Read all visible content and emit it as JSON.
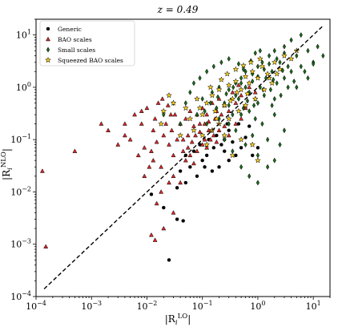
{
  "chart_data": {
    "type": "scatter",
    "title": "z = 0.49",
    "xlabel": "|R_i^LO|",
    "ylabel": "|R_i^NLO|",
    "xscale": "log",
    "yscale": "log",
    "xlim": [
      0.0001,
      20
    ],
    "ylim": [
      0.0001,
      20
    ],
    "x_ticks": [
      "10^-4",
      "10^-3",
      "10^-2",
      "10^-1",
      "10^0",
      "10^1"
    ],
    "y_ticks": [
      "10^-4",
      "10^-3",
      "10^-2",
      "10^-1",
      "10^0",
      "10^1"
    ],
    "grid": false,
    "legend_position": "top-left",
    "reference_line": {
      "style": "dashed",
      "color": "#000000",
      "from": [
        0.00014,
        0.00014
      ],
      "to": [
        15,
        15
      ]
    },
    "series": [
      {
        "name": "Generic",
        "marker": "circle",
        "color": "#000000",
        "points": [
          [
            0.025,
            0.0005
          ],
          [
            0.035,
            0.003
          ],
          [
            0.045,
            0.0028
          ],
          [
            0.02,
            0.005
          ],
          [
            0.035,
            0.012
          ],
          [
            0.05,
            0.015
          ],
          [
            0.06,
            0.03
          ],
          [
            0.08,
            0.02
          ],
          [
            0.1,
            0.04
          ],
          [
            0.12,
            0.05
          ],
          [
            0.15,
            0.025
          ],
          [
            0.2,
            0.03
          ],
          [
            0.25,
            0.06
          ],
          [
            0.3,
            0.04
          ],
          [
            0.4,
            0.05
          ],
          [
            0.5,
            0.07
          ],
          [
            0.07,
            0.06
          ],
          [
            0.09,
            0.08
          ],
          [
            0.13,
            0.1
          ],
          [
            0.18,
            0.12
          ],
          [
            0.25,
            0.1
          ],
          [
            0.35,
            0.09
          ],
          [
            0.6,
            0.11
          ],
          [
            0.8,
            0.05
          ],
          [
            1.0,
            0.07
          ],
          [
            0.05,
            0.05
          ],
          [
            0.3,
            0.15
          ],
          [
            0.45,
            0.2
          ],
          [
            0.7,
            0.18
          ],
          [
            0.012,
            0.009
          ],
          [
            0.22,
            0.08
          ],
          [
            0.16,
            0.07
          ],
          [
            0.11,
            0.03
          ],
          [
            0.04,
            0.025
          ],
          [
            0.28,
            0.2
          ]
        ]
      },
      {
        "name": "BAO scales",
        "marker": "triangle",
        "color": "#d62728",
        "points": [
          [
            0.00013,
            0.025
          ],
          [
            0.00015,
            0.0009
          ],
          [
            0.0005,
            0.06
          ],
          [
            0.0015,
            0.2
          ],
          [
            0.002,
            0.15
          ],
          [
            0.003,
            0.08
          ],
          [
            0.004,
            0.12
          ],
          [
            0.005,
            0.1
          ],
          [
            0.006,
            0.3
          ],
          [
            0.007,
            0.05
          ],
          [
            0.008,
            0.2
          ],
          [
            0.009,
            0.07
          ],
          [
            0.01,
            0.4
          ],
          [
            0.012,
            0.06
          ],
          [
            0.013,
            0.15
          ],
          [
            0.014,
            0.25
          ],
          [
            0.015,
            0.09
          ],
          [
            0.016,
            0.5
          ],
          [
            0.018,
            0.03
          ],
          [
            0.02,
            0.12
          ],
          [
            0.022,
            0.2
          ],
          [
            0.025,
            0.08
          ],
          [
            0.028,
            0.15
          ],
          [
            0.03,
            0.004
          ],
          [
            0.032,
            0.3
          ],
          [
            0.035,
            0.1
          ],
          [
            0.04,
            0.2
          ],
          [
            0.045,
            0.06
          ],
          [
            0.05,
            0.25
          ],
          [
            0.055,
            0.12
          ],
          [
            0.06,
            0.35
          ],
          [
            0.065,
            0.09
          ],
          [
            0.07,
            0.18
          ],
          [
            0.08,
            0.3
          ],
          [
            0.09,
            0.14
          ],
          [
            0.1,
            0.4
          ],
          [
            0.11,
            0.2
          ],
          [
            0.12,
            0.3
          ],
          [
            0.13,
            0.15
          ],
          [
            0.15,
            0.5
          ],
          [
            0.17,
            0.25
          ],
          [
            0.2,
            0.6
          ],
          [
            0.22,
            0.3
          ],
          [
            0.25,
            0.45
          ],
          [
            0.3,
            0.35
          ],
          [
            0.35,
            0.8
          ],
          [
            0.4,
            0.5
          ],
          [
            0.5,
            0.7
          ],
          [
            0.6,
            0.4
          ],
          [
            0.012,
            0.0015
          ],
          [
            0.014,
            0.0012
          ],
          [
            0.02,
            0.002
          ],
          [
            0.015,
            0.006
          ],
          [
            0.018,
            0.01
          ],
          [
            0.025,
            0.015
          ],
          [
            0.03,
            0.02
          ],
          [
            0.04,
            0.015
          ],
          [
            0.05,
            0.04
          ],
          [
            0.06,
            0.05
          ],
          [
            0.07,
            0.035
          ],
          [
            0.08,
            0.06
          ],
          [
            0.1,
            0.08
          ],
          [
            0.12,
            0.07
          ],
          [
            0.14,
            0.1
          ],
          [
            0.16,
            0.12
          ],
          [
            0.18,
            0.09
          ],
          [
            0.2,
            0.15
          ],
          [
            0.25,
            0.18
          ],
          [
            0.3,
            0.12
          ],
          [
            0.4,
            0.2
          ],
          [
            0.5,
            0.25
          ],
          [
            0.009,
            0.02
          ],
          [
            0.011,
            0.03
          ],
          [
            0.013,
            0.04
          ],
          [
            0.03,
            0.05
          ],
          [
            0.045,
            0.1
          ],
          [
            0.055,
            0.07
          ],
          [
            0.075,
            0.12
          ],
          [
            0.09,
            0.2
          ],
          [
            0.11,
            0.1
          ],
          [
            0.13,
            0.22
          ],
          [
            0.18,
            0.35
          ],
          [
            0.004,
            0.2
          ],
          [
            0.008,
            0.35
          ],
          [
            0.019,
            0.6
          ],
          [
            0.024,
            0.45
          ],
          [
            0.027,
            0.3
          ],
          [
            0.7,
            1.0
          ],
          [
            0.9,
            0.8
          ],
          [
            0.45,
            1.1
          ]
        ]
      },
      {
        "name": "Small scales",
        "marker": "diamond",
        "color": "#1a6b1a",
        "points": [
          [
            0.05,
            0.5
          ],
          [
            0.08,
            0.3
          ],
          [
            0.1,
            0.6
          ],
          [
            0.12,
            0.2
          ],
          [
            0.15,
            0.8
          ],
          [
            0.18,
            0.4
          ],
          [
            0.2,
            1.0
          ],
          [
            0.25,
            0.5
          ],
          [
            0.3,
            0.9
          ],
          [
            0.35,
            0.3
          ],
          [
            0.4,
            1.2
          ],
          [
            0.45,
            0.6
          ],
          [
            0.5,
            1.5
          ],
          [
            0.55,
            0.4
          ],
          [
            0.6,
            2.0
          ],
          [
            0.7,
            0.8
          ],
          [
            0.8,
            1.8
          ],
          [
            0.9,
            0.6
          ],
          [
            1.0,
            2.5
          ],
          [
            1.1,
            1.0
          ],
          [
            1.2,
            3.0
          ],
          [
            1.4,
            1.5
          ],
          [
            1.6,
            4.0
          ],
          [
            1.8,
            2.0
          ],
          [
            2.0,
            5.0
          ],
          [
            2.5,
            3.0
          ],
          [
            3.0,
            6.0
          ],
          [
            3.5,
            2.5
          ],
          [
            4.0,
            8.0
          ],
          [
            5.0,
            4.0
          ],
          [
            6.0,
            10.0
          ],
          [
            8.0,
            5.0
          ],
          [
            10.0,
            3.0
          ],
          [
            12.0,
            6.0
          ],
          [
            15.0,
            4.0
          ],
          [
            0.3,
            0.2
          ],
          [
            0.5,
            0.3
          ],
          [
            0.7,
            0.35
          ],
          [
            1.0,
            0.5
          ],
          [
            1.3,
            0.7
          ],
          [
            1.7,
            0.9
          ],
          [
            2.2,
            1.2
          ],
          [
            3.0,
            1.5
          ],
          [
            4.0,
            2.0
          ],
          [
            6.0,
            2.5
          ],
          [
            2.0,
            0.3
          ],
          [
            3.0,
            0.15
          ],
          [
            2.5,
            0.08
          ],
          [
            1.5,
            0.1
          ],
          [
            1.0,
            0.05
          ],
          [
            0.6,
            0.08
          ],
          [
            0.8,
            0.12
          ],
          [
            1.2,
            0.2
          ],
          [
            2.0,
            0.6
          ],
          [
            5.0,
            1.0
          ],
          [
            8.0,
            1.5
          ],
          [
            0.4,
            0.15
          ],
          [
            0.25,
            0.1
          ],
          [
            0.15,
            0.15
          ],
          [
            0.2,
            0.25
          ],
          [
            0.3,
            0.45
          ],
          [
            0.4,
            0.7
          ],
          [
            0.6,
            1.0
          ],
          [
            0.8,
            1.3
          ],
          [
            1.0,
            1.6
          ],
          [
            1.3,
            2.2
          ],
          [
            1.6,
            2.8
          ],
          [
            2.2,
            3.5
          ],
          [
            3.0,
            4.5
          ],
          [
            0.02,
            0.3
          ],
          [
            0.03,
            0.5
          ],
          [
            0.04,
            0.2
          ],
          [
            0.06,
            0.8
          ],
          [
            0.07,
            1.2
          ],
          [
            0.09,
            1.5
          ],
          [
            0.12,
            2.0
          ],
          [
            0.16,
            2.5
          ],
          [
            0.22,
            3.0
          ],
          [
            0.3,
            3.5
          ],
          [
            0.45,
            2.8
          ],
          [
            0.55,
            2.2
          ],
          [
            0.75,
            3.2
          ],
          [
            0.9,
            4.5
          ],
          [
            1.1,
            5.0
          ],
          [
            0.7,
            0.02
          ],
          [
            1.0,
            0.015
          ],
          [
            1.5,
            0.03
          ],
          [
            2.0,
            0.04
          ],
          [
            0.5,
            0.03
          ],
          [
            0.35,
            0.06
          ],
          [
            0.9,
            0.25
          ],
          [
            1.8,
            0.45
          ],
          [
            2.6,
            0.7
          ],
          [
            3.5,
            1.0
          ],
          [
            4.5,
            1.3
          ],
          [
            7.0,
            2.0
          ],
          [
            10.0,
            2.8
          ],
          [
            0.65,
            0.55
          ],
          [
            0.85,
            0.45
          ],
          [
            1.25,
            0.9
          ],
          [
            1.9,
            1.4
          ],
          [
            2.8,
            2.1
          ],
          [
            0.11,
            0.35
          ],
          [
            0.14,
            0.5
          ],
          [
            0.19,
            0.65
          ],
          [
            0.27,
            0.75
          ],
          [
            0.36,
            1.0
          ],
          [
            0.5,
            1.2
          ]
        ]
      },
      {
        "name": "Squeezed BAO scales",
        "marker": "star",
        "color": "#ffd21a",
        "points": [
          [
            0.03,
            0.5
          ],
          [
            0.05,
            0.4
          ],
          [
            0.08,
            0.6
          ],
          [
            0.1,
            0.3
          ],
          [
            0.12,
            0.5
          ],
          [
            0.15,
            0.7
          ],
          [
            0.18,
            0.25
          ],
          [
            0.2,
            0.9
          ],
          [
            0.25,
            0.45
          ],
          [
            0.3,
            1.1
          ],
          [
            0.35,
            0.6
          ],
          [
            0.4,
            1.3
          ],
          [
            0.5,
            0.9
          ],
          [
            0.6,
            1.6
          ],
          [
            0.7,
            1.2
          ],
          [
            0.8,
            2.0
          ],
          [
            1.0,
            1.5
          ],
          [
            1.2,
            2.5
          ],
          [
            1.5,
            1.8
          ],
          [
            2.0,
            3.0
          ],
          [
            2.5,
            2.2
          ],
          [
            3.0,
            4.0
          ],
          [
            4.0,
            3.5
          ],
          [
            5.0,
            5.0
          ],
          [
            0.15,
            0.15
          ],
          [
            0.2,
            0.2
          ],
          [
            0.3,
            0.25
          ],
          [
            0.45,
            0.35
          ],
          [
            0.6,
            0.45
          ],
          [
            0.9,
            0.6
          ],
          [
            1.3,
            0.9
          ],
          [
            1.8,
            1.2
          ],
          [
            0.5,
            0.1
          ],
          [
            0.8,
            0.08
          ],
          [
            1.0,
            0.04
          ],
          [
            0.35,
            0.05
          ],
          [
            0.25,
            0.12
          ],
          [
            0.12,
            0.08
          ],
          [
            0.07,
            0.15
          ],
          [
            0.04,
            0.12
          ],
          [
            0.06,
            0.25
          ],
          [
            0.09,
            0.4
          ],
          [
            0.14,
            1.0
          ],
          [
            0.22,
            1.4
          ],
          [
            0.28,
            1.8
          ],
          [
            0.4,
            2.2
          ],
          [
            0.55,
            2.6
          ],
          [
            0.75,
            3.0
          ],
          [
            1.1,
            3.5
          ],
          [
            0.1,
            0.12
          ],
          [
            0.17,
            0.35
          ],
          [
            0.32,
            0.55
          ],
          [
            0.42,
            0.8
          ],
          [
            0.65,
            0.75
          ],
          [
            1.6,
            1.5
          ],
          [
            2.2,
            1.8
          ],
          [
            0.02,
            0.35
          ],
          [
            0.025,
            0.7
          ],
          [
            0.018,
            0.2
          ]
        ]
      }
    ]
  }
}
